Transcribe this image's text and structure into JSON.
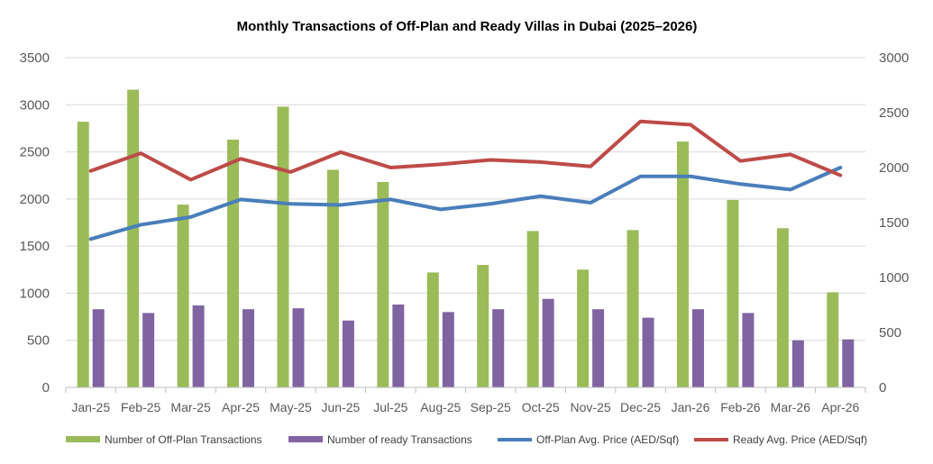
{
  "chart_data": {
    "type": "bar",
    "title": "Monthly Transactions of Off-Plan and Ready Villas in Dubai  (2025–2026)",
    "categories": [
      "Jan-25",
      "Feb-25",
      "Mar-25",
      "Apr-25",
      "May-25",
      "Jun-25",
      "Jul-25",
      "Aug-25",
      "Sep-25",
      "Oct-25",
      "Nov-25",
      "Dec-25",
      "Jan-26",
      "Feb-26",
      "Mar-26",
      "Apr-26"
    ],
    "y_left": {
      "ylim": [
        0,
        3500
      ],
      "ticks": [
        0,
        500,
        1000,
        1500,
        2000,
        2500,
        3000,
        3500
      ]
    },
    "y_right": {
      "ylim": [
        0,
        3000
      ],
      "ticks": [
        0,
        500,
        1000,
        1500,
        2000,
        2500,
        3000
      ]
    },
    "grid": "horizontal",
    "legend_position": "bottom",
    "series": [
      {
        "name": "Number of Off-Plan Transactions",
        "type": "bar",
        "axis": "left",
        "color": "#9bbb59",
        "values": [
          2820,
          3160,
          1940,
          2630,
          2980,
          2310,
          2180,
          1220,
          1300,
          1660,
          1250,
          1670,
          2610,
          1990,
          1690,
          1010
        ]
      },
      {
        "name": "Number of ready Transactions",
        "type": "bar",
        "axis": "left",
        "color": "#8064a2",
        "values": [
          830,
          790,
          870,
          830,
          840,
          710,
          880,
          800,
          830,
          940,
          830,
          740,
          830,
          790,
          500,
          510
        ]
      },
      {
        "name": "Off-Plan Avg. Price (AED/Sqf)",
        "type": "line",
        "axis": "right",
        "color": "#4a7ebb",
        "values": [
          1350,
          1480,
          1550,
          1710,
          1670,
          1660,
          1710,
          1620,
          1670,
          1740,
          1680,
          1920,
          1920,
          1850,
          1800,
          2000
        ]
      },
      {
        "name": "Ready Avg. Price (AED/Sqf)",
        "type": "line",
        "axis": "right",
        "color": "#be4b48",
        "values": [
          1970,
          2130,
          1890,
          2080,
          1960,
          2140,
          2000,
          2030,
          2070,
          2050,
          2010,
          2420,
          2390,
          2060,
          2120,
          1930
        ]
      }
    ]
  }
}
